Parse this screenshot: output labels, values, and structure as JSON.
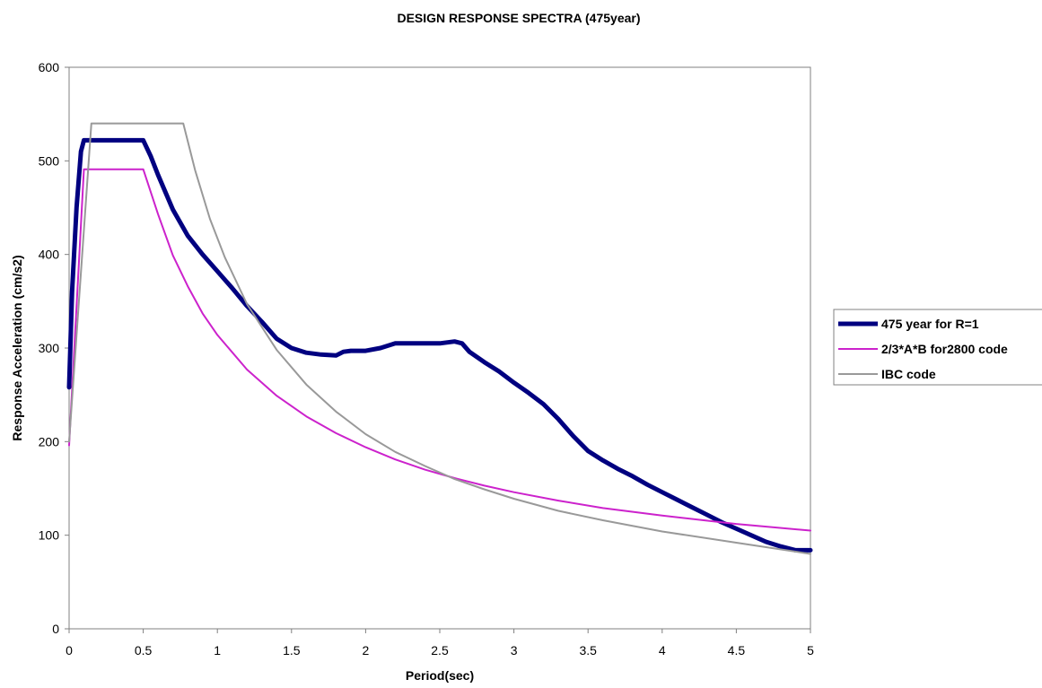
{
  "chart_data": {
    "type": "line",
    "title": "DESIGN RESPONSE SPECTRA (475year)",
    "xlabel": "Period(sec)",
    "ylabel": "Response Acceleration (cm/s2)",
    "xlim": [
      0,
      5
    ],
    "ylim": [
      0,
      600
    ],
    "x_ticks": [
      0,
      0.5,
      1,
      1.5,
      2,
      2.5,
      3,
      3.5,
      4,
      4.5,
      5
    ],
    "x_tick_labels": [
      "0",
      "0.5",
      "1",
      "1.5",
      "2",
      "2.5",
      "3",
      "3.5",
      "4",
      "4.5",
      "5"
    ],
    "y_ticks": [
      0,
      100,
      200,
      300,
      400,
      500,
      600
    ],
    "y_tick_labels": [
      "0",
      "100",
      "200",
      "300",
      "400",
      "500",
      "600"
    ],
    "grid": false,
    "legend_position": "right",
    "series": [
      {
        "name": "475 year for R=1",
        "color": "#000080",
        "points": [
          [
            0,
            258
          ],
          [
            0.02,
            360
          ],
          [
            0.05,
            450
          ],
          [
            0.08,
            510
          ],
          [
            0.1,
            522
          ],
          [
            0.2,
            522
          ],
          [
            0.3,
            522
          ],
          [
            0.4,
            522
          ],
          [
            0.5,
            522
          ],
          [
            0.55,
            505
          ],
          [
            0.6,
            485
          ],
          [
            0.7,
            448
          ],
          [
            0.8,
            420
          ],
          [
            0.9,
            400
          ],
          [
            1.0,
            382
          ],
          [
            1.1,
            364
          ],
          [
            1.2,
            345
          ],
          [
            1.3,
            328
          ],
          [
            1.4,
            310
          ],
          [
            1.5,
            300
          ],
          [
            1.6,
            295
          ],
          [
            1.7,
            293
          ],
          [
            1.8,
            292
          ],
          [
            1.85,
            296
          ],
          [
            1.9,
            297
          ],
          [
            2.0,
            297
          ],
          [
            2.1,
            300
          ],
          [
            2.2,
            305
          ],
          [
            2.3,
            305
          ],
          [
            2.4,
            305
          ],
          [
            2.5,
            305
          ],
          [
            2.6,
            307
          ],
          [
            2.65,
            305
          ],
          [
            2.7,
            296
          ],
          [
            2.8,
            285
          ],
          [
            2.9,
            275
          ],
          [
            3.0,
            263
          ],
          [
            3.1,
            252
          ],
          [
            3.2,
            240
          ],
          [
            3.3,
            224
          ],
          [
            3.4,
            206
          ],
          [
            3.5,
            190
          ],
          [
            3.6,
            180
          ],
          [
            3.7,
            171
          ],
          [
            3.8,
            163
          ],
          [
            3.9,
            154
          ],
          [
            4.0,
            146
          ],
          [
            4.1,
            138
          ],
          [
            4.2,
            130
          ],
          [
            4.3,
            122
          ],
          [
            4.4,
            114
          ],
          [
            4.5,
            107
          ],
          [
            4.6,
            100
          ],
          [
            4.7,
            93
          ],
          [
            4.8,
            88
          ],
          [
            4.9,
            84
          ],
          [
            5.0,
            84
          ]
        ]
      },
      {
        "name": "2/3*A*B for2800 code",
        "color": "#cc22cc",
        "points": [
          [
            0,
            196
          ],
          [
            0.1,
            491
          ],
          [
            0.5,
            491
          ],
          [
            0.6,
            443
          ],
          [
            0.7,
            399
          ],
          [
            0.8,
            366
          ],
          [
            0.9,
            337
          ],
          [
            1.0,
            314
          ],
          [
            1.2,
            277
          ],
          [
            1.4,
            249
          ],
          [
            1.6,
            227
          ],
          [
            1.8,
            209
          ],
          [
            2.0,
            194
          ],
          [
            2.2,
            181
          ],
          [
            2.4,
            170
          ],
          [
            2.6,
            161
          ],
          [
            2.8,
            153
          ],
          [
            3.0,
            146
          ],
          [
            3.3,
            137
          ],
          [
            3.6,
            129
          ],
          [
            4.0,
            121
          ],
          [
            4.5,
            112
          ],
          [
            5.0,
            105
          ]
        ]
      },
      {
        "name": "IBC code",
        "color": "#999999",
        "points": [
          [
            0,
            200
          ],
          [
            0.15,
            540
          ],
          [
            0.77,
            540
          ],
          [
            0.85,
            490
          ],
          [
            0.95,
            438
          ],
          [
            1.05,
            397
          ],
          [
            1.2,
            347
          ],
          [
            1.4,
            298
          ],
          [
            1.6,
            261
          ],
          [
            1.8,
            232
          ],
          [
            2.0,
            208
          ],
          [
            2.2,
            189
          ],
          [
            2.4,
            174
          ],
          [
            2.6,
            160
          ],
          [
            2.8,
            149
          ],
          [
            3.0,
            139
          ],
          [
            3.3,
            126
          ],
          [
            3.6,
            116
          ],
          [
            4.0,
            104
          ],
          [
            4.5,
            92
          ],
          [
            5.0,
            80
          ]
        ]
      }
    ]
  }
}
